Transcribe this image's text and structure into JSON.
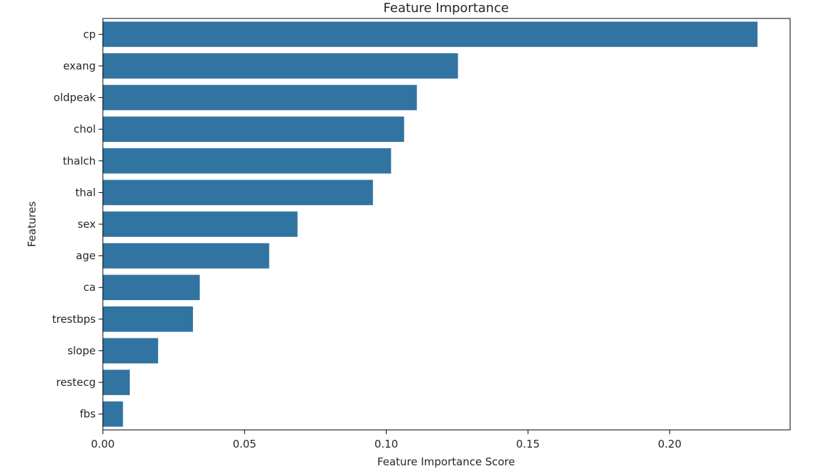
{
  "chart_data": {
    "type": "bar",
    "orientation": "horizontal",
    "title": "Feature Importance",
    "xlabel": "Feature Importance Score",
    "ylabel": "Features",
    "categories": [
      "cp",
      "exang",
      "oldpeak",
      "chol",
      "thalch",
      "thal",
      "sex",
      "age",
      "ca",
      "trestbps",
      "slope",
      "restecg",
      "fbs"
    ],
    "values": [
      0.231,
      0.1253,
      0.1108,
      0.1063,
      0.1017,
      0.0953,
      0.0687,
      0.0587,
      0.0342,
      0.0318,
      0.0195,
      0.0095,
      0.0071
    ],
    "xlim": [
      0,
      0.2425
    ],
    "xticks": [
      0.0,
      0.05,
      0.1,
      0.15,
      0.2
    ],
    "xtick_labels": [
      "0.00",
      "0.05",
      "0.10",
      "0.15",
      "0.20"
    ],
    "grid": false,
    "bar_color": "#3274a1"
  }
}
